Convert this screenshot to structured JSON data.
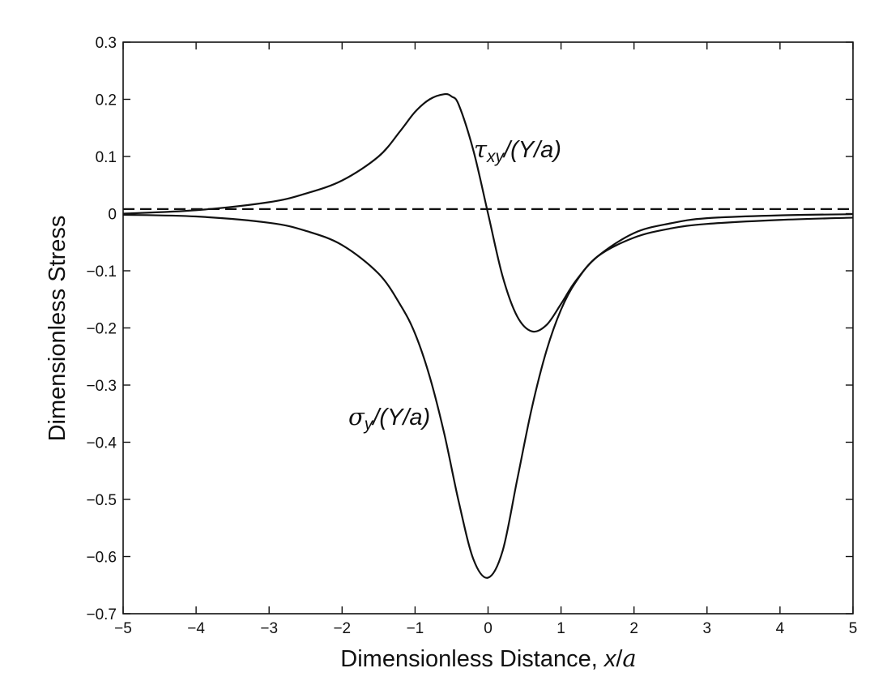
{
  "chart_data": {
    "type": "line",
    "xlabel": "Dimensionless Distance, x/a",
    "xlabel_parts": {
      "main": "Dimensionless Distance, ",
      "italic": "x",
      "slash": "/",
      "italic2": "a"
    },
    "ylabel": "Dimensionless Stress",
    "xlim": [
      -5,
      5
    ],
    "ylim": [
      -0.7,
      0.3
    ],
    "xticks": [
      -5,
      -4,
      -3,
      -2,
      -1,
      0,
      1,
      2,
      3,
      4,
      5
    ],
    "xtick_labels": [
      "−5",
      "−4",
      "−3",
      "−2",
      "−1",
      "0",
      "1",
      "2",
      "3",
      "4",
      "5"
    ],
    "yticks": [
      0.3,
      0.2,
      0.1,
      0,
      -0.1,
      -0.2,
      -0.3,
      -0.4,
      -0.5,
      -0.6,
      -0.7
    ],
    "ytick_labels": [
      "0.3",
      "0.2",
      "0.1",
      "0",
      "−0.1",
      "−0.2",
      "−0.3",
      "−0.4",
      "−0.5",
      "−0.6",
      "−0.7"
    ],
    "grid": false,
    "legend": "none",
    "series": [
      {
        "name": "τxy/(Y/a)",
        "label_parts": {
          "greek": "τ",
          "sub": "xy",
          "rest": "/(Y/a)"
        },
        "style": "solid",
        "x": [
          -5,
          -4,
          -3,
          -2.5,
          -2,
          -1.5,
          -1.2,
          -1,
          -0.8,
          -0.6,
          -0.5,
          -0.4,
          -0.2,
          0,
          0.2,
          0.4,
          0.6,
          0.8,
          1,
          1.2,
          1.5,
          2,
          2.5,
          3,
          4,
          5
        ],
        "y": [
          0.0,
          0.006,
          0.02,
          0.035,
          0.058,
          0.1,
          0.145,
          0.178,
          0.2,
          0.209,
          0.205,
          0.19,
          0.11,
          0.0,
          -0.11,
          -0.18,
          -0.206,
          -0.195,
          -0.158,
          -0.118,
          -0.075,
          -0.034,
          -0.017,
          -0.008,
          -0.003,
          -0.001
        ]
      },
      {
        "name": "σy/(Y/a)",
        "label_parts": {
          "greek": "σ",
          "sub": "y",
          "rest": "/(Y/a)"
        },
        "style": "solid",
        "x": [
          -5,
          -4,
          -3,
          -2.5,
          -2,
          -1.5,
          -1.2,
          -1,
          -0.8,
          -0.6,
          -0.4,
          -0.2,
          0,
          0.2,
          0.4,
          0.6,
          0.8,
          1,
          1.2,
          1.5,
          2,
          2.5,
          3,
          4,
          5
        ],
        "y": [
          -0.002,
          -0.005,
          -0.016,
          -0.03,
          -0.055,
          -0.105,
          -0.16,
          -0.21,
          -0.285,
          -0.385,
          -0.505,
          -0.605,
          -0.637,
          -0.59,
          -0.465,
          -0.34,
          -0.24,
          -0.168,
          -0.12,
          -0.075,
          -0.042,
          -0.026,
          -0.018,
          -0.011,
          -0.007
        ]
      },
      {
        "name": "",
        "style": "dashed",
        "x": [
          -5,
          5
        ],
        "y": [
          0.008,
          0.008
        ]
      }
    ]
  }
}
